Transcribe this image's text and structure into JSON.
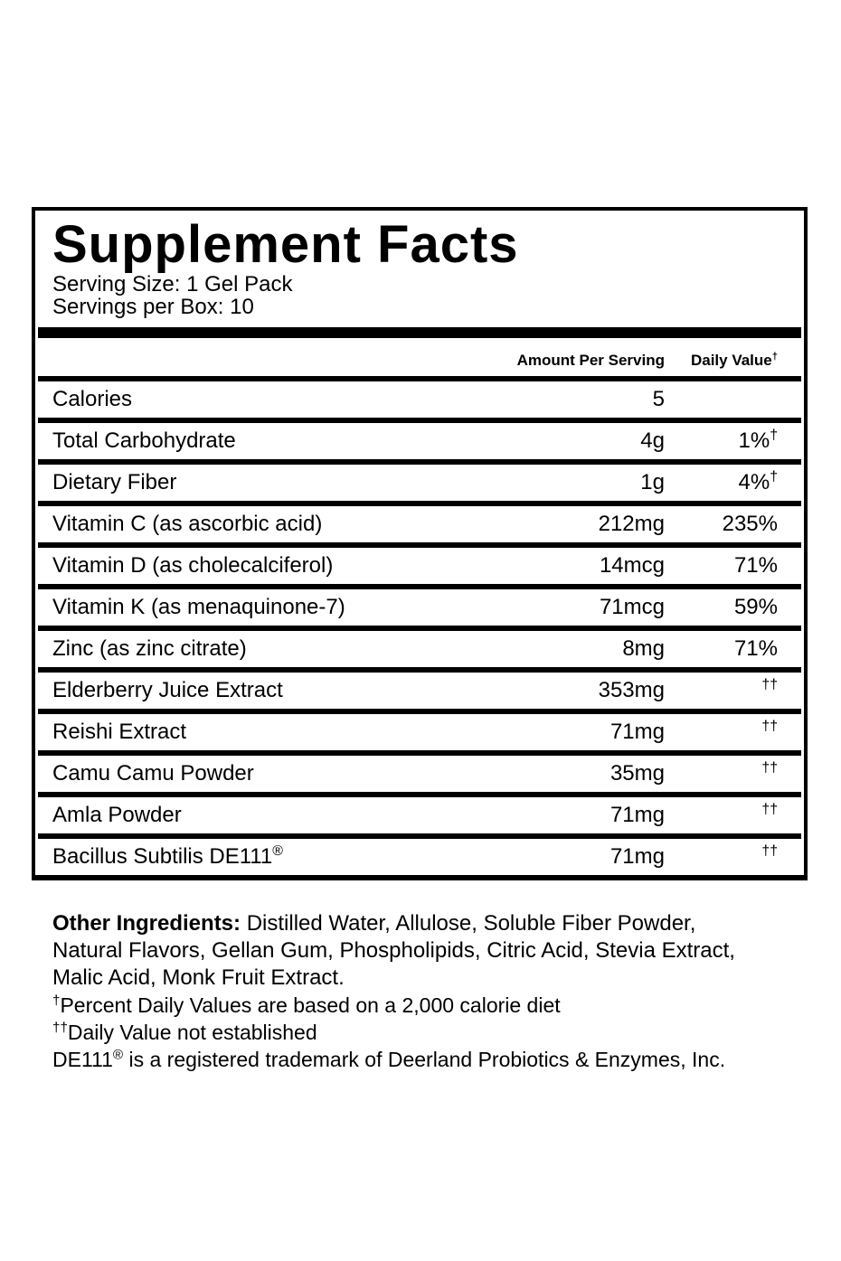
{
  "label": {
    "title": "Supplement Facts",
    "serving_size": "Serving Size: 1 Gel Pack",
    "servings_per_box": "Servings per Box: 10",
    "columns": {
      "amount": "Amount Per Serving",
      "daily_value": "Daily Value",
      "daily_value_sup": "†"
    },
    "rows": [
      {
        "name": "Calories",
        "amount": "5",
        "dv": "",
        "dv_sup": ""
      },
      {
        "name": "Total Carbohydrate",
        "amount": "4g",
        "dv": "1%",
        "dv_sup": "†"
      },
      {
        "name": "Dietary Fiber",
        "amount": "1g",
        "dv": "4%",
        "dv_sup": "†"
      },
      {
        "name": "Vitamin C (as ascorbic acid)",
        "amount": "212mg",
        "dv": "235%",
        "dv_sup": ""
      },
      {
        "name": "Vitamin D (as cholecalciferol)",
        "amount": "14mcg",
        "dv": "71%",
        "dv_sup": ""
      },
      {
        "name": "Vitamin K (as menaquinone-7)",
        "amount": "71mcg",
        "dv": "59%",
        "dv_sup": ""
      },
      {
        "name": "Zinc (as zinc citrate)",
        "amount": "8mg",
        "dv": "71%",
        "dv_sup": ""
      },
      {
        "name": "Elderberry Juice Extract",
        "amount": "353mg",
        "dv": "",
        "dv_sup": "††"
      },
      {
        "name": "Reishi Extract",
        "amount": "71mg",
        "dv": "",
        "dv_sup": "††"
      },
      {
        "name": "Camu Camu Powder",
        "amount": "35mg",
        "dv": "",
        "dv_sup": "††"
      },
      {
        "name": "Amla Powder",
        "amount": "71mg",
        "dv": "",
        "dv_sup": "††"
      },
      {
        "name": "Bacillus Subtilis DE111",
        "name_sup": "®",
        "amount": "71mg",
        "dv": "",
        "dv_sup": "††"
      }
    ]
  },
  "footer": {
    "other_ingredients_label": "Other Ingredients:",
    "other_ingredients_text": " Distilled Water, Allulose, Soluble Fiber Powder, Natural Flavors, Gellan Gum, Phospholipids, Citric Acid, Stevia Extract, Malic Acid, Monk Fruit Extract.",
    "footnote1_sup": "†",
    "footnote1": "Percent Daily Values are based on a 2,000 calorie diet",
    "footnote2_sup": "††",
    "footnote2": "Daily Value not established",
    "footnote3_prefix": "DE111",
    "footnote3_sup": "®",
    "footnote3": " is a registered trademark of Deerland Probiotics & Enzymes, Inc."
  },
  "colors": {
    "text": "#000000",
    "background": "#ffffff"
  }
}
